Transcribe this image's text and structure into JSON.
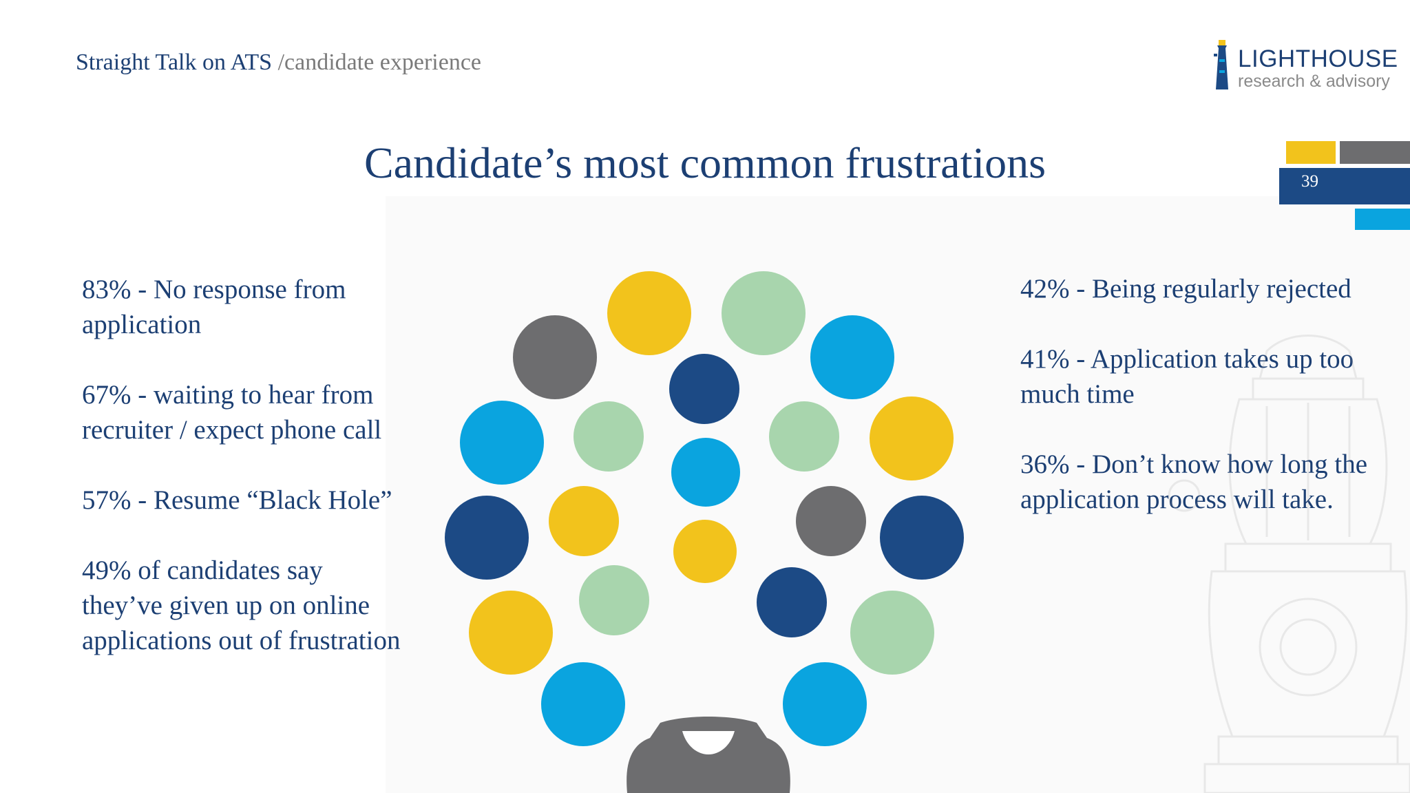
{
  "header": {
    "deck_title_a": "Straight Talk on ATS",
    "deck_title_b": "/candidate  experience",
    "logo_line1": "LIGHTHOUSE",
    "logo_line2": "research & advisory"
  },
  "slide": {
    "title": "Candidate’s most common frustrations",
    "page_number": "39"
  },
  "left_stats": [
    "83% - No response from application",
    "67% - waiting to hear from recruiter / expect phone call",
    "57% - Resume “Black Hole”",
    "49% of candidates say they’ve given up on online  applications out of frustration"
  ],
  "right_stats": [
    "42% - Being regularly rejected",
    "41% - Application takes up too much time",
    "36% - Don’t know how long the application process will take."
  ],
  "colors": {
    "navy": "#1c4a85",
    "yellow": "#f2c31c",
    "gray": "#6d6d6f",
    "light_blue": "#0aa4df",
    "mint": "#a8d5ad",
    "text": "#1c3f73"
  },
  "icons": {
    "lighthouse_logo": "lighthouse-icon",
    "bulb_base": "lightbulb-base-icon",
    "watermark": "lantern-watermark-icon"
  }
}
